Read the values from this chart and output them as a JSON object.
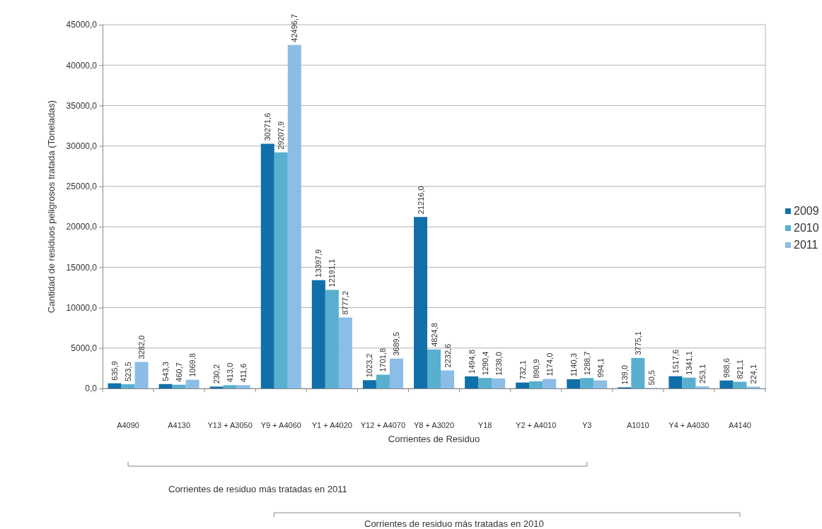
{
  "chart_data": {
    "type": "bar",
    "xlabel": "Corrientes de Residuo",
    "ylabel": "Cantidad de residuos peligrosos tratada (Toneladas)",
    "categories": [
      "A4090",
      "A4130",
      "Y13 + A3050",
      "Y9 + A4060",
      "Y1 + A4020",
      "Y12 + A4070",
      "Y8 + A3020",
      "Y18",
      "Y2 + A4010",
      "Y3",
      "A1010",
      "Y4 + A4030",
      "A4140"
    ],
    "series": [
      {
        "name": "2009",
        "color": "#1170aa",
        "values": [
          635.9,
          543.3,
          230.2,
          30271.6,
          13397.9,
          1023.2,
          21216.0,
          1494.8,
          732.1,
          1140.3,
          139.0,
          1517.6,
          988.6
        ],
        "value_labels": [
          "635,9",
          "543,3",
          "230,2",
          "30271,6",
          "13397,9",
          "1023,2",
          "21216,0",
          "1494,8",
          "732,1",
          "1140,3",
          "139,0",
          "1517,6",
          "988,6"
        ]
      },
      {
        "name": "2010",
        "color": "#58afcf",
        "values": [
          523.5,
          460.7,
          413.0,
          29207.9,
          12191.1,
          1701.8,
          4824.8,
          1290.4,
          890.9,
          1288.7,
          3775.1,
          1341.1,
          821.1
        ],
        "value_labels": [
          "523,5",
          "460,7",
          "413,0",
          "29207,9",
          "12191,1",
          "1701,8",
          "4824,8",
          "1290,4",
          "890,9",
          "1288,7",
          "3775,1",
          "1341,1",
          "821,1"
        ]
      },
      {
        "name": "2011",
        "color": "#8bbde6",
        "values": [
          3282.0,
          1069.8,
          411.6,
          42496.7,
          8777.2,
          3689.5,
          2232.6,
          1238.0,
          1174.0,
          994.1,
          50.5,
          253.1,
          224.1
        ],
        "value_labels": [
          "3282,0",
          "1069,8",
          "411,6",
          "42496,7",
          "8777,2",
          "3689,5",
          "2232,6",
          "1238,0",
          "1174,0",
          "994,1",
          "50,5",
          "253,1",
          "224,1"
        ]
      }
    ],
    "ylim": [
      0,
      45000
    ],
    "yticks": [
      {
        "value": 0,
        "label": "0,0"
      },
      {
        "value": 5000,
        "label": "5000,0"
      },
      {
        "value": 10000,
        "label": "10000,0"
      },
      {
        "value": 15000,
        "label": "15000,0"
      },
      {
        "value": 20000,
        "label": "20000,0"
      },
      {
        "value": 25000,
        "label": "25000,0"
      },
      {
        "value": 30000,
        "label": "30000,0"
      },
      {
        "value": 35000,
        "label": "35000,0"
      },
      {
        "value": 40000,
        "label": "40000,0"
      },
      {
        "value": 45000,
        "label": "45000,0"
      }
    ],
    "grid": "y",
    "legend": "right",
    "annotations": [
      "Corrientes de residuo más tratadas en 2011",
      "Corrientes de residuo más tratadas en 2010"
    ]
  }
}
